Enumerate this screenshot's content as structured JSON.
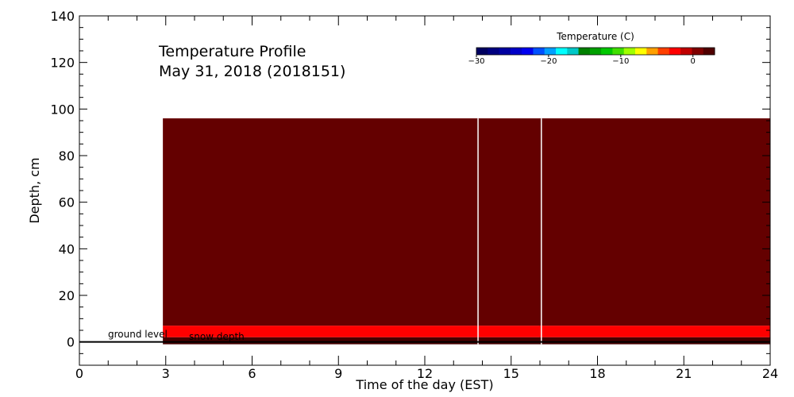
{
  "chart_data": {
    "type": "heatmap",
    "title": "Temperature Profile",
    "subtitle": "May 31, 2018 (2018151)",
    "xlabel": "Time of the day (EST)",
    "ylabel": "Depth, cm",
    "xlim": [
      0,
      24
    ],
    "ylim": [
      -10,
      140
    ],
    "x_ticks": [
      0,
      3,
      6,
      9,
      12,
      15,
      18,
      21,
      24
    ],
    "y_ticks": [
      0,
      20,
      40,
      60,
      80,
      100,
      120,
      140
    ],
    "bands": [
      {
        "x_start": 2.9,
        "x_end": 24,
        "y_start": 2,
        "y_end": 7,
        "color": "#ff0000"
      },
      {
        "x_start": 2.9,
        "x_end": 24,
        "y_start": 7,
        "y_end": 96,
        "color": "#640000"
      },
      {
        "x_start": 2.9,
        "x_end": 24,
        "y_start": -1,
        "y_end": 2,
        "color": "#460000"
      }
    ],
    "gaps_x": [
      13.85,
      16.05
    ],
    "ground_level": {
      "label": "ground level",
      "y": 0,
      "x_start": 0,
      "x_end": 24
    },
    "snow_depth": {
      "label": "snow depth",
      "y": 0
    },
    "colorbar": {
      "title": "Temperature (C)",
      "range": [
        -30,
        3
      ],
      "tick_values": [
        -30,
        -20,
        -10,
        0
      ],
      "tick_labels": [
        "−30",
        "−20",
        "−10",
        "0"
      ],
      "colors": [
        "#000060",
        "#000080",
        "#0000a0",
        "#0000c8",
        "#0000f0",
        "#0050ff",
        "#00a0ff",
        "#00ffff",
        "#00c8c8",
        "#008000",
        "#00a000",
        "#00c800",
        "#40e000",
        "#a0ff00",
        "#ffff00",
        "#ffa000",
        "#ff4000",
        "#ff0000",
        "#c00000",
        "#800000",
        "#500000"
      ]
    }
  }
}
